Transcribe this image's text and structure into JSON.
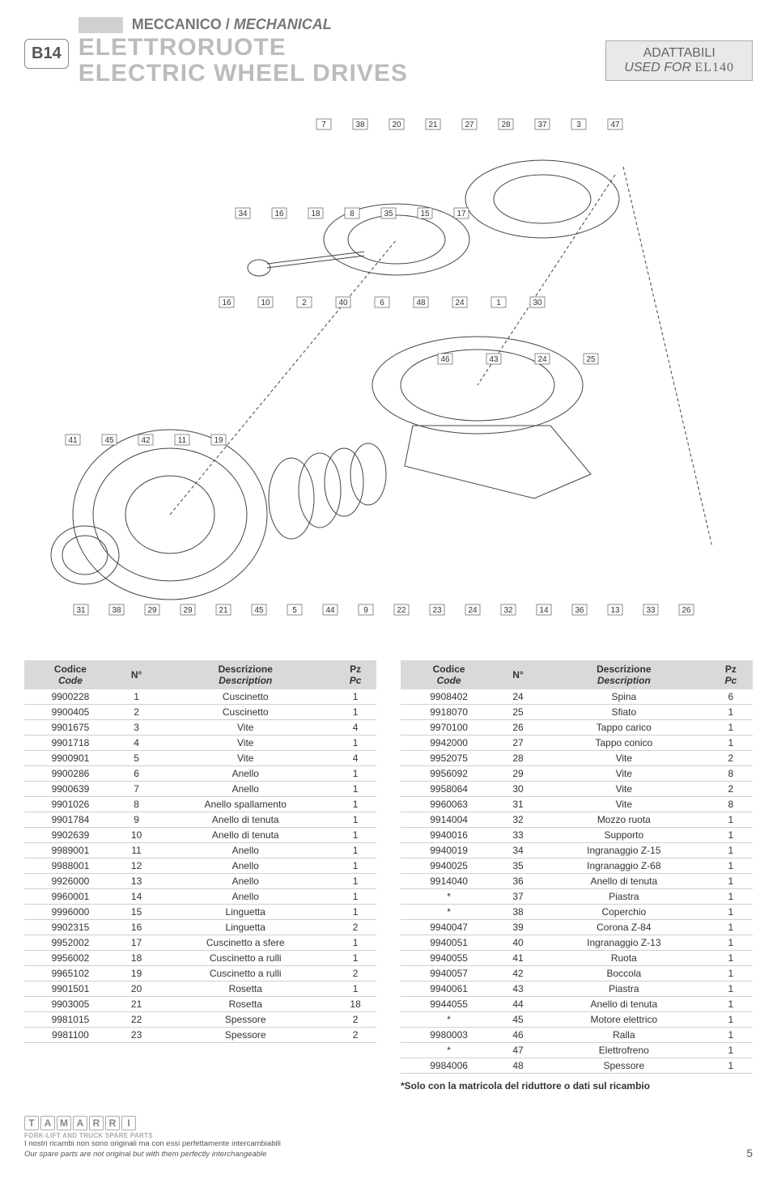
{
  "header": {
    "code_badge": "B14",
    "category_it": "MECCANICO",
    "category_en": "MECHANICAL",
    "title_it": "ELETTRORUOTE",
    "title_en": "ELECTRIC WHEEL DRIVES",
    "adapt_l1": "ADATTABILI",
    "adapt_l2_prefix": "USED FOR ",
    "adapt_model": "EL140"
  },
  "diagram": {
    "placeholder": "[ Exploded mechanical assembly diagram — not reproducible in HTML ]",
    "callouts_top": [
      "7",
      "38",
      "20",
      "21",
      "27",
      "28",
      "37",
      "3",
      "47"
    ],
    "callouts_mid": [
      "34",
      "16",
      "18",
      "8",
      "35",
      "15",
      "17"
    ],
    "callouts_row": [
      "16",
      "10",
      "2",
      "40",
      "6",
      "48",
      "24",
      "1",
      "30"
    ],
    "callouts_ring": [
      "46",
      "43",
      "24",
      "25"
    ],
    "callouts_wheel": [
      "41",
      "45",
      "42",
      "11",
      "19"
    ],
    "callouts_bottom": [
      "31",
      "38",
      "29",
      "29",
      "21",
      "45",
      "5",
      "44",
      "9",
      "22",
      "23",
      "24",
      "32",
      "14",
      "36",
      "13",
      "33",
      "26"
    ]
  },
  "table_headers": {
    "code_it": "Codice",
    "code_en": "Code",
    "n": "N°",
    "desc_it": "Descrizione",
    "desc_en": "Description",
    "pz_it": "Pz",
    "pz_en": "Pc"
  },
  "left_rows": [
    [
      "9900228",
      "1",
      "Cuscinetto",
      "1"
    ],
    [
      "9900405",
      "2",
      "Cuscinetto",
      "1"
    ],
    [
      "9901675",
      "3",
      "Vite",
      "4"
    ],
    [
      "9901718",
      "4",
      "Vite",
      "1"
    ],
    [
      "9900901",
      "5",
      "Vite",
      "4"
    ],
    [
      "9900286",
      "6",
      "Anello",
      "1"
    ],
    [
      "9900639",
      "7",
      "Anello",
      "1"
    ],
    [
      "9901026",
      "8",
      "Anello spallamento",
      "1"
    ],
    [
      "9901784",
      "9",
      "Anello di tenuta",
      "1"
    ],
    [
      "9902639",
      "10",
      "Anello di tenuta",
      "1"
    ],
    [
      "9989001",
      "11",
      "Anello",
      "1"
    ],
    [
      "9988001",
      "12",
      "Anello",
      "1"
    ],
    [
      "9926000",
      "13",
      "Anello",
      "1"
    ],
    [
      "9960001",
      "14",
      "Anello",
      "1"
    ],
    [
      "9996000",
      "15",
      "Linguetta",
      "1"
    ],
    [
      "9902315",
      "16",
      "Linguetta",
      "2"
    ],
    [
      "9952002",
      "17",
      "Cuscinetto a sfere",
      "1"
    ],
    [
      "9956002",
      "18",
      "Cuscinetto a rulli",
      "1"
    ],
    [
      "9965102",
      "19",
      "Cuscinetto a rulli",
      "2"
    ],
    [
      "9901501",
      "20",
      "Rosetta",
      "1"
    ],
    [
      "9903005",
      "21",
      "Rosetta",
      "18"
    ],
    [
      "9981015",
      "22",
      "Spessore",
      "2"
    ],
    [
      "9981100",
      "23",
      "Spessore",
      "2"
    ]
  ],
  "right_rows": [
    [
      "9908402",
      "24",
      "Spina",
      "6"
    ],
    [
      "9918070",
      "25",
      "Sfiato",
      "1"
    ],
    [
      "9970100",
      "26",
      "Tappo carico",
      "1"
    ],
    [
      "9942000",
      "27",
      "Tappo conico",
      "1"
    ],
    [
      "9952075",
      "28",
      "Vite",
      "2"
    ],
    [
      "9956092",
      "29",
      "Vite",
      "8"
    ],
    [
      "9958064",
      "30",
      "Vite",
      "2"
    ],
    [
      "9960063",
      "31",
      "Vite",
      "8"
    ],
    [
      "9914004",
      "32",
      "Mozzo ruota",
      "1"
    ],
    [
      "9940016",
      "33",
      "Supporto",
      "1"
    ],
    [
      "9940019",
      "34",
      "Ingranaggio Z-15",
      "1"
    ],
    [
      "9940025",
      "35",
      "Ingranaggio Z-68",
      "1"
    ],
    [
      "9914040",
      "36",
      "Anello di tenuta",
      "1"
    ],
    [
      "*",
      "37",
      "Piastra",
      "1"
    ],
    [
      "*",
      "38",
      "Coperchio",
      "1"
    ],
    [
      "9940047",
      "39",
      "Corona Z-84",
      "1"
    ],
    [
      "9940051",
      "40",
      "Ingranaggio Z-13",
      "1"
    ],
    [
      "9940055",
      "41",
      "Ruota",
      "1"
    ],
    [
      "9940057",
      "42",
      "Boccola",
      "1"
    ],
    [
      "9940061",
      "43",
      "Piastra",
      "1"
    ],
    [
      "9944055",
      "44",
      "Anello di tenuta",
      "1"
    ],
    [
      "*",
      "45",
      "Motore elettrico",
      "1"
    ],
    [
      "9980003",
      "46",
      "Ralla",
      "1"
    ],
    [
      "*",
      "47",
      "Elettrofreno",
      "1"
    ],
    [
      "9984006",
      "48",
      "Spessore",
      "1"
    ]
  ],
  "footnote": "*Solo con la matricola del riduttore o dati sul ricambio",
  "footer": {
    "logo_letters": [
      "T",
      "A",
      "M",
      "A",
      "R",
      "R",
      "I"
    ],
    "logo_sub": "FORK-LIFT AND TRUCK SPARE PARTS",
    "disclaimer_it": "I nostri ricambi non sono originali ma con essi perfettamente intercambiabili",
    "disclaimer_en": "Our spare parts are not original but with them perfectly interchangeable",
    "page": "5"
  },
  "colors": {
    "header_gray": "#bcbcbc",
    "bar_gray": "#d0d0d0",
    "th_bg": "#d9d9d9",
    "border": "#d0d0d0",
    "adapt_bg": "#e9e9e9"
  }
}
